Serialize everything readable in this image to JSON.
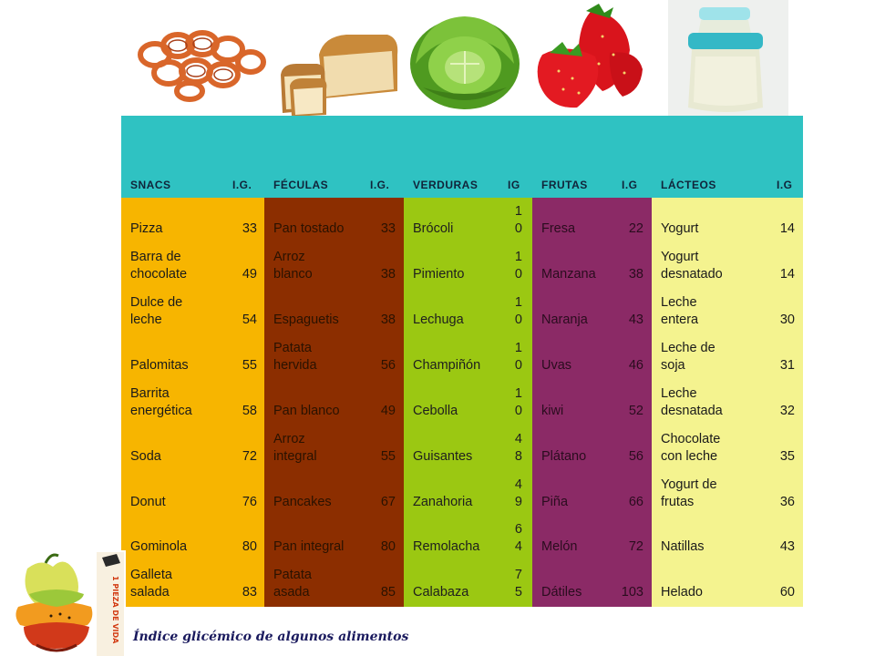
{
  "columns": [
    {
      "key": "snacs",
      "title": "SNACS",
      "ig_label": "I.G.",
      "items": [
        {
          "name": "Pizza",
          "ig": "33"
        },
        {
          "name": "Barra de\nchocolate",
          "ig": "49"
        },
        {
          "name": "Dulce de\nleche",
          "ig": "54"
        },
        {
          "name": "Palomitas",
          "ig": "55"
        },
        {
          "name": "Barrita\nenergética",
          "ig": "58"
        },
        {
          "name": "Soda",
          "ig": "72"
        },
        {
          "name": "Donut",
          "ig": "76"
        },
        {
          "name": "Gominola",
          "ig": "80"
        },
        {
          "name": "Galleta\nsalada",
          "ig": "83"
        }
      ]
    },
    {
      "key": "feculas",
      "title": "FÉCULAS",
      "ig_label": "I.G.",
      "items": [
        {
          "name": "Pan tostado",
          "ig": "33"
        },
        {
          "name": "Arroz\nblanco",
          "ig": "38"
        },
        {
          "name": "Espaguetis",
          "ig": "38"
        },
        {
          "name": "Patata\nhervida",
          "ig": "56"
        },
        {
          "name": "Pan blanco",
          "ig": "49"
        },
        {
          "name": "Arroz\nintegral",
          "ig": "55"
        },
        {
          "name": "Pancakes",
          "ig": "67"
        },
        {
          "name": "Pan integral",
          "ig": "80"
        },
        {
          "name": "Patata\nasada",
          "ig": "85"
        }
      ]
    },
    {
      "key": "verduras",
      "title": "VERDURAS",
      "ig_label": "IG",
      "items": [
        {
          "name": "Brócoli",
          "ig": "1\n0"
        },
        {
          "name": "Pimiento",
          "ig": "1\n0"
        },
        {
          "name": "Lechuga",
          "ig": "1\n0"
        },
        {
          "name": "Champiñón",
          "ig": "1\n0"
        },
        {
          "name": "Cebolla",
          "ig": "1\n0"
        },
        {
          "name": "Guisantes",
          "ig": "4\n8"
        },
        {
          "name": "Zanahoria",
          "ig": "4\n9"
        },
        {
          "name": "Remolacha",
          "ig": "6\n4"
        },
        {
          "name": "Calabaza",
          "ig": "7\n5"
        }
      ]
    },
    {
      "key": "frutas",
      "title": "FRUTAS",
      "ig_label": "I.G",
      "items": [
        {
          "name": "Fresa",
          "ig": "22"
        },
        {
          "name": "Manzana",
          "ig": "38"
        },
        {
          "name": "Naranja",
          "ig": "43"
        },
        {
          "name": "Uvas",
          "ig": "46"
        },
        {
          "name": "kiwi",
          "ig": "52"
        },
        {
          "name": "Plátano",
          "ig": "56"
        },
        {
          "name": "Piña",
          "ig": "66"
        },
        {
          "name": "Melón",
          "ig": "72"
        },
        {
          "name": "Dátiles",
          "ig": "103"
        }
      ]
    },
    {
      "key": "lacteos",
      "title": "LÁCTEOS",
      "ig_label": "I.G",
      "items": [
        {
          "name": "Yogurt",
          "ig": "14"
        },
        {
          "name": "Yogurt\ndesnatado",
          "ig": "14"
        },
        {
          "name": "Leche\nentera",
          "ig": "30"
        },
        {
          "name": "Leche de\nsoja",
          "ig": "31"
        },
        {
          "name": "Leche\ndesnatada",
          "ig": "32"
        },
        {
          "name": "Chocolate\ncon leche",
          "ig": "35"
        },
        {
          "name": "Yogurt de\nfrutas",
          "ig": "36"
        },
        {
          "name": "Natillas",
          "ig": "43"
        },
        {
          "name": "Helado",
          "ig": "60"
        }
      ]
    }
  ],
  "caption": "Índice glicémico de algunos alimentos",
  "logo_text": "1 PIEZA DE VIDA",
  "colors": {
    "header": "#2fc2c2",
    "snacs": "#f7b500",
    "feculas": "#8c2e00",
    "verduras": "#9bc812",
    "frutas": "#8b2a66",
    "lacteos": "#f4f38f"
  },
  "photos": [
    "pretzels-icon",
    "bread-icon",
    "lettuce-icon",
    "strawberries-icon",
    "yogurt-icon"
  ]
}
